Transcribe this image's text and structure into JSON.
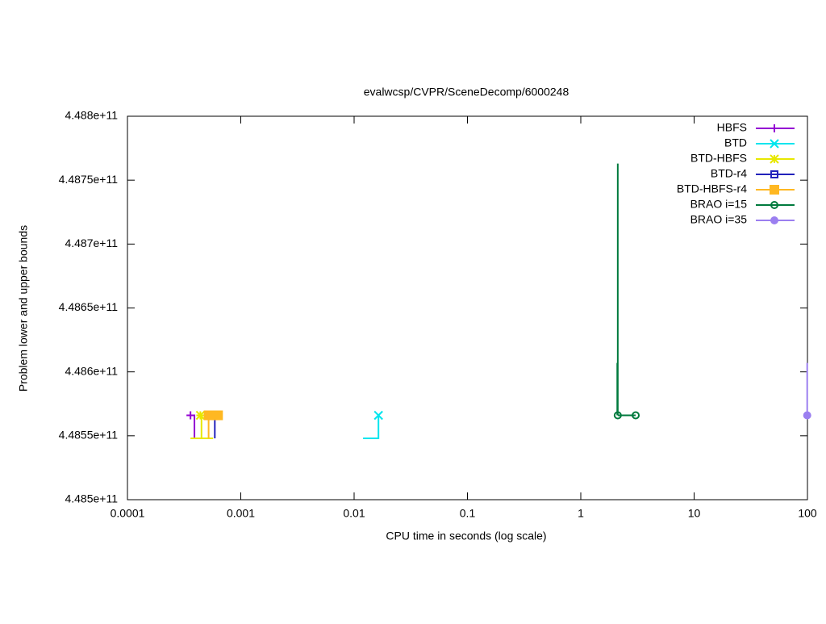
{
  "chart_data": {
    "type": "line",
    "title": "evalwcsp/CVPR/SceneDecomp/6000248",
    "xlabel": "CPU time in seconds (log scale)",
    "ylabel": "Problem lower and upper bounds",
    "xscale": "log",
    "xlim": [
      0.0001,
      100
    ],
    "xticks": [
      0.0001,
      0.001,
      0.01,
      0.1,
      1,
      10,
      100
    ],
    "ylim": [
      448500000000,
      448800000000
    ],
    "yticks": [
      {
        "value": 448500000000,
        "label": "4.485e+11"
      },
      {
        "value": 448550000000,
        "label": "4.4855e+11"
      },
      {
        "value": 448600000000,
        "label": "4.486e+11"
      },
      {
        "value": 448650000000,
        "label": "4.4865e+11"
      },
      {
        "value": 448700000000,
        "label": "4.487e+11"
      },
      {
        "value": 448750000000,
        "label": "4.4875e+11"
      },
      {
        "value": 448800000000,
        "label": "4.488e+11"
      }
    ],
    "grid": false,
    "legend": "top-right",
    "series": [
      {
        "name": "HBFS",
        "color": "#9400d3",
        "marker": "plus",
        "x": [
          0.00036,
          0.00039,
          0.00039
        ],
        "values": [
          448566000000,
          448566000000,
          448548000000
        ],
        "points_x": [
          0.00036
        ],
        "points": [
          448566000000
        ]
      },
      {
        "name": "BTD",
        "color": "#00e5ee",
        "marker": "cross",
        "x": [
          0.012,
          0.0164,
          0.0164
        ],
        "values": [
          448548000000,
          448548000000,
          448566000000
        ],
        "points_x": [
          0.0164
        ],
        "points": [
          448566000000
        ]
      },
      {
        "name": "BTD-HBFS",
        "color": "#e8e800",
        "marker": "star",
        "x": [
          0.00036,
          0.00057,
          null,
          0.00045,
          0.00045
        ],
        "values": [
          448548000000,
          448548000000,
          null,
          448566000000,
          448548000000
        ],
        "points_x": [
          0.00044
        ],
        "points": [
          448566000000
        ]
      },
      {
        "name": "BTD-r4",
        "color": "#2222bb",
        "marker": "square",
        "x": [
          0.00059,
          0.00059
        ],
        "values": [
          448566000000,
          448548000000
        ],
        "points_x": [
          0.00055
        ],
        "points": [
          448566000000
        ]
      },
      {
        "name": "BTD-HBFS-r4",
        "color": "#ffb822",
        "marker": "filled-square",
        "x": [
          0.00052,
          0.00052,
          null,
          0.00052,
          0.00063
        ],
        "values": [
          448566000000,
          448548000000,
          null,
          448566000000,
          448566000000
        ],
        "points_x": [
          0.00052,
          0.00063
        ],
        "points": [
          448566000000,
          448566000000
        ]
      },
      {
        "name": "BRAO i=15",
        "color": "#007a3d",
        "marker": "circle",
        "x": [
          2.12,
          2.12,
          null,
          2.1,
          2.1,
          null,
          2.12,
          3.05
        ],
        "values": [
          448566000000,
          448763000000,
          null,
          448566000000,
          448607000000,
          null,
          448566000000,
          448566000000
        ],
        "points_x": [
          2.12,
          3.05
        ],
        "points": [
          448566000000,
          448566000000
        ]
      },
      {
        "name": "BRAO i=35",
        "color": "#9b7ff0",
        "marker": "filled-circle",
        "x": [
          99.5,
          99.5
        ],
        "values": [
          448566000000,
          448607000000
        ],
        "points_x": [
          99.5
        ],
        "points": [
          448566000000
        ]
      }
    ]
  }
}
